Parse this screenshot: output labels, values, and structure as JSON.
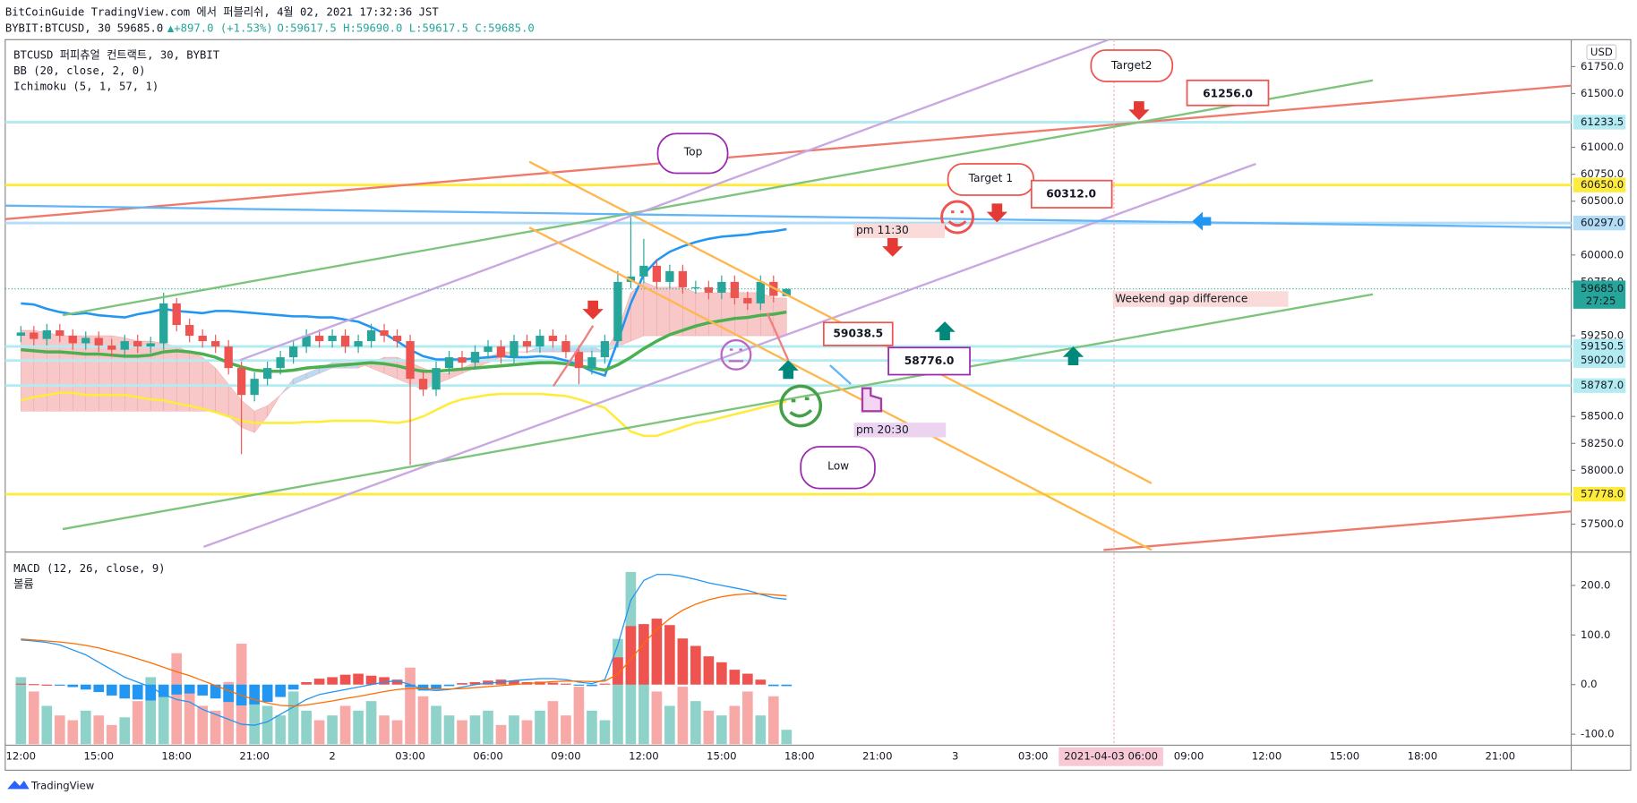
{
  "header": {
    "publisher": "BitCoinGuide TradingView.com 에서 퍼블리쉬, 4월 02, 2021 17:32:36 JST",
    "symbol": "BYBIT:BTCUSD, 30",
    "last": "59685.0",
    "arrow": "▲",
    "change": "+897.0 (+1.53%)",
    "ohlc": "O:59617.5 H:59690.0 L:59617.5 C:59685.0"
  },
  "legend": [
    "BTCUSD 퍼피츄얼 컨트랙트, 30, BYBIT",
    "BB (20, close, 2, 0)",
    "Ichimoku (5, 1, 57, 1)"
  ],
  "time_axis": {
    "labels": [
      "12:00",
      "15:00",
      "18:00",
      "21:00",
      "2",
      "03:00",
      "06:00",
      "09:00",
      "12:00",
      "15:00",
      "18:00",
      "21:00",
      "3",
      "03:00",
      "2021-04-03  06:00",
      "09:00",
      "12:00",
      "15:00",
      "18:00",
      "21:00"
    ],
    "highlight": 14
  },
  "chart_data": [
    {
      "type": "candlestick",
      "currency": "USD",
      "grid": false,
      "up_color": "#26a69a",
      "down_color": "#ef5350",
      "open": [
        59250,
        59280,
        59220,
        59300,
        59250,
        59180,
        59230,
        59160,
        59120,
        59200,
        59150,
        59180,
        59550,
        59350,
        59250,
        59200,
        59150,
        58950,
        58700,
        58850,
        58950,
        59050,
        59150,
        59250,
        59200,
        59250,
        59150,
        59200,
        59300,
        59250,
        59200,
        58850,
        58750,
        58950,
        59050,
        59000,
        59100,
        59150,
        59050,
        59200,
        59150,
        59250,
        59200,
        59100,
        58950,
        59050,
        59200,
        59750,
        59800,
        59900,
        59750,
        59850,
        59700,
        59700,
        59650,
        59750,
        59600,
        59550,
        59750,
        59617.5
      ],
      "high": [
        59340,
        59340,
        59360,
        59360,
        59310,
        59290,
        59290,
        59220,
        59260,
        59260,
        59240,
        59650,
        59600,
        59410,
        59310,
        59260,
        59210,
        59010,
        58910,
        59010,
        59110,
        59210,
        59310,
        59310,
        59310,
        59310,
        59260,
        59360,
        59360,
        59310,
        59260,
        58910,
        59010,
        59110,
        59110,
        59160,
        59210,
        59210,
        59260,
        59260,
        59310,
        59310,
        59260,
        59160,
        59110,
        59260,
        59850,
        60350,
        60150,
        59960,
        59910,
        59910,
        59760,
        59760,
        59810,
        59810,
        59660,
        59810,
        59810,
        59690
      ],
      "low": [
        59190,
        59160,
        59160,
        59190,
        59120,
        59120,
        59100,
        59060,
        59060,
        59090,
        59090,
        59120,
        59290,
        59190,
        59140,
        59090,
        58890,
        58150,
        58640,
        58790,
        58890,
        58990,
        59090,
        59140,
        59140,
        59090,
        59090,
        59140,
        59190,
        59140,
        58050,
        58690,
        58690,
        58890,
        58940,
        58940,
        59040,
        58990,
        58990,
        59090,
        59090,
        59140,
        59040,
        58800,
        58890,
        58990,
        59140,
        59690,
        59740,
        59690,
        59690,
        59640,
        59640,
        59590,
        59590,
        59540,
        59490,
        59490,
        59560,
        59617.5
      ],
      "close": [
        59280,
        59220,
        59300,
        59250,
        59180,
        59230,
        59160,
        59120,
        59200,
        59150,
        59180,
        59550,
        59350,
        59250,
        59200,
        59150,
        58950,
        58700,
        58850,
        58950,
        59050,
        59150,
        59250,
        59200,
        59250,
        59150,
        59200,
        59300,
        59250,
        59200,
        58850,
        58750,
        58950,
        59050,
        59000,
        59100,
        59150,
        59050,
        59200,
        59150,
        59250,
        59200,
        59100,
        58950,
        59050,
        59200,
        59750,
        59800,
        59900,
        59750,
        59850,
        59700,
        59700,
        59650,
        59750,
        59600,
        59550,
        59750,
        59620,
        59685
      ],
      "series": [
        {
          "name": "BB upper",
          "color": "#2196f3",
          "values": [
            59550,
            59540,
            59500,
            59470,
            59450,
            59460,
            59440,
            59430,
            59420,
            59450,
            59470,
            59500,
            59480,
            59470,
            59460,
            59480,
            59480,
            59470,
            59460,
            59450,
            59440,
            59430,
            59430,
            59420,
            59420,
            59400,
            59380,
            59330,
            59270,
            59200,
            59120,
            59060,
            59030,
            59030,
            59030,
            59040,
            59050,
            59060,
            59050,
            59050,
            59060,
            59050,
            59020,
            58980,
            58920,
            58880,
            59200,
            59550,
            59820,
            59950,
            60030,
            60080,
            60120,
            60150,
            60170,
            60180,
            60190,
            60210,
            60220,
            60240
          ]
        },
        {
          "name": "BB basis",
          "color": "#4caf50",
          "values": [
            59120,
            59110,
            59100,
            59100,
            59090,
            59080,
            59080,
            59070,
            59060,
            59060,
            59070,
            59100,
            59110,
            59100,
            59080,
            59050,
            59000,
            58960,
            58930,
            58920,
            58920,
            58930,
            58950,
            58960,
            58970,
            58980,
            58990,
            59000,
            58990,
            58970,
            58940,
            58920,
            58920,
            58930,
            58940,
            58950,
            58960,
            58970,
            58980,
            58990,
            59000,
            59000,
            58990,
            58970,
            58950,
            58930,
            58980,
            59050,
            59130,
            59200,
            59260,
            59300,
            59340,
            59370,
            59390,
            59410,
            59420,
            59440,
            59450,
            59470
          ]
        },
        {
          "name": "BB lower",
          "color": "#ffeb3b",
          "values": [
            58650,
            58680,
            58700,
            58720,
            58720,
            58700,
            58700,
            58700,
            58700,
            58680,
            58660,
            58650,
            58620,
            58600,
            58570,
            58540,
            58500,
            58460,
            58440,
            58440,
            58440,
            58440,
            58450,
            58450,
            58460,
            58460,
            58460,
            58460,
            58450,
            58440,
            58460,
            58500,
            58560,
            58620,
            58660,
            58680,
            58700,
            58710,
            58710,
            58710,
            58710,
            58700,
            58690,
            58660,
            58620,
            58580,
            58470,
            58360,
            58320,
            58320,
            58360,
            58400,
            58440,
            58460,
            58490,
            58520,
            58550,
            58580,
            58610,
            58640
          ]
        }
      ],
      "span_a": [
        59300,
        59300,
        59280,
        59250,
        59250,
        59250,
        59250,
        59250,
        59230,
        59200,
        59200,
        59180,
        59150,
        59100,
        59050,
        58950,
        58800,
        58650,
        58550,
        58600,
        58700,
        58800,
        58850,
        58900,
        58950,
        58950,
        58950,
        59000,
        59050,
        59050,
        59000,
        58950,
        58900,
        58900,
        58950,
        59000,
        59050,
        59100,
        59100,
        59100,
        59100,
        59100,
        59100,
        59100,
        59100,
        59100,
        59300,
        59650,
        59750,
        59700,
        59700,
        59700,
        59650,
        59650,
        59650,
        59650,
        59650,
        59650,
        59600,
        59600
      ],
      "span_b": [
        58550,
        58550,
        58550,
        58550,
        58550,
        58550,
        58550,
        58550,
        58550,
        58550,
        58550,
        58550,
        58550,
        58550,
        58550,
        58550,
        58500,
        58400,
        58350,
        58500,
        58700,
        58850,
        58900,
        58950,
        59000,
        59000,
        59000,
        58950,
        58900,
        58850,
        58800,
        58750,
        58800,
        58850,
        58900,
        58950,
        59000,
        59050,
        59100,
        59100,
        59150,
        59150,
        59150,
        59150,
        59150,
        59100,
        59150,
        59200,
        59250,
        59250,
        59250,
        59250,
        59250,
        59250,
        59250,
        59250,
        59250,
        59250,
        59250,
        59250
      ],
      "cloud_colors": [
        "#f8c8c8",
        "#b8dcf5"
      ],
      "ylim": [
        57250,
        62000
      ],
      "yticks": [
        {
          "value": 57500,
          "label": "57500.0"
        },
        {
          "value": 58000,
          "label": "58000.0"
        },
        {
          "value": 58250,
          "label": "58250.0"
        },
        {
          "value": 58500,
          "label": "58500.0"
        },
        {
          "value": 59250,
          "label": "59250.0"
        },
        {
          "value": 59750,
          "label": "59750.0"
        },
        {
          "value": 60000,
          "label": "60000.0"
        },
        {
          "value": 60500,
          "label": "60500.0"
        },
        {
          "value": 60750,
          "label": "60750.0"
        },
        {
          "value": 61000,
          "label": "61000.0"
        },
        {
          "value": 61500,
          "label": "61500.0"
        },
        {
          "value": 61750,
          "label": "61750.0"
        }
      ],
      "horizontal_lines": [
        {
          "value": 61233.5,
          "label": "61233.5",
          "color": "#b2ebf2"
        },
        {
          "value": 60650,
          "label": "60650.0",
          "color": "#ffeb3b"
        },
        {
          "value": 60297,
          "label": "60297.0",
          "color": "#b3dcf7"
        },
        {
          "value": 59150.5,
          "label": "59150.5",
          "color": "#b2ebf2"
        },
        {
          "value": 59020,
          "label": "59020.0",
          "color": "#b2ebf2"
        },
        {
          "value": 58787,
          "label": "58787.0",
          "color": "#b2ebf2"
        },
        {
          "value": 57778,
          "label": "57778.0",
          "color": "#ffeb3b"
        }
      ],
      "last_price": {
        "value": 59685,
        "label": "59685.0",
        "countdown": "27:25",
        "color": "#26a69a"
      }
    },
    {
      "type": "macd",
      "title": "MACD (12, 26, close, 9)",
      "volume_title": "볼륨",
      "grid": false,
      "histogram": [
        2,
        1,
        0,
        -2,
        -5,
        -10,
        -15,
        -22,
        -28,
        -30,
        -32,
        -25,
        -20,
        -18,
        -22,
        -28,
        -35,
        -42,
        -40,
        -35,
        -25,
        -10,
        5,
        12,
        15,
        20,
        22,
        18,
        15,
        10,
        -5,
        -12,
        -8,
        -3,
        3,
        5,
        8,
        10,
        8,
        5,
        6,
        4,
        2,
        -2,
        -3,
        2,
        55,
        118,
        122,
        133,
        120,
        93,
        78,
        57,
        45,
        30,
        22,
        10,
        -3,
        -3
      ],
      "macd": [
        90,
        88,
        85,
        80,
        70,
        60,
        45,
        30,
        15,
        5,
        -5,
        -20,
        -30,
        -35,
        -50,
        -60,
        -70,
        -80,
        -82,
        -75,
        -60,
        -45,
        -30,
        -20,
        -15,
        -10,
        -5,
        0,
        5,
        8,
        0,
        -10,
        -12,
        -10,
        -5,
        0,
        3,
        5,
        8,
        10,
        12,
        12,
        10,
        5,
        2,
        10,
        80,
        170,
        210,
        222,
        222,
        218,
        212,
        205,
        200,
        195,
        190,
        182,
        175,
        172
      ],
      "signal": [
        92,
        90,
        88,
        86,
        83,
        79,
        74,
        67,
        60,
        52,
        44,
        35,
        26,
        18,
        8,
        -2,
        -12,
        -22,
        -30,
        -37,
        -42,
        -43,
        -41,
        -37,
        -33,
        -28,
        -24,
        -19,
        -14,
        -10,
        -8,
        -8,
        -9,
        -9,
        -8,
        -6,
        -4,
        -2,
        0,
        2,
        4,
        6,
        7,
        7,
        6,
        7,
        21,
        51,
        83,
        111,
        133,
        150,
        162,
        171,
        177,
        181,
        183,
        183,
        181,
        179
      ],
      "volume": [
        70,
        55,
        40,
        30,
        25,
        35,
        30,
        20,
        28,
        45,
        70,
        50,
        95,
        60,
        40,
        35,
        65,
        105,
        50,
        40,
        30,
        55,
        35,
        25,
        30,
        40,
        35,
        45,
        30,
        25,
        80,
        50,
        40,
        30,
        25,
        30,
        35,
        20,
        30,
        25,
        35,
        45,
        30,
        60,
        35,
        25,
        110,
        180,
        70,
        55,
        40,
        60,
        45,
        35,
        30,
        40,
        55,
        30,
        50,
        15
      ],
      "colors": {
        "up": "#ef5350",
        "down": "#2196f3",
        "macd": "#2196f3",
        "signal": "#ff6d00",
        "vol_up": "#8fd2c9",
        "vol_down": "#f7a9a7"
      },
      "ylim": [
        -120,
        265
      ],
      "yticks": [
        {
          "value": -100,
          "label": "-100.0"
        },
        {
          "value": 0,
          "label": "0.0"
        },
        {
          "value": 100,
          "label": "100.0"
        },
        {
          "value": 200,
          "label": "200.0"
        }
      ]
    }
  ],
  "annotations": {
    "top": "Top",
    "low": "Low",
    "target2": "Target2",
    "target1": "Target 1",
    "p61256": "61256.0",
    "p60312": "60312.0",
    "p59038": "59038.5",
    "p58776": "58776.0",
    "pm1130": "pm 11:30",
    "pm2030": "pm 20:30",
    "weekend": "Weekend gap difference"
  },
  "footer": "TradingView"
}
